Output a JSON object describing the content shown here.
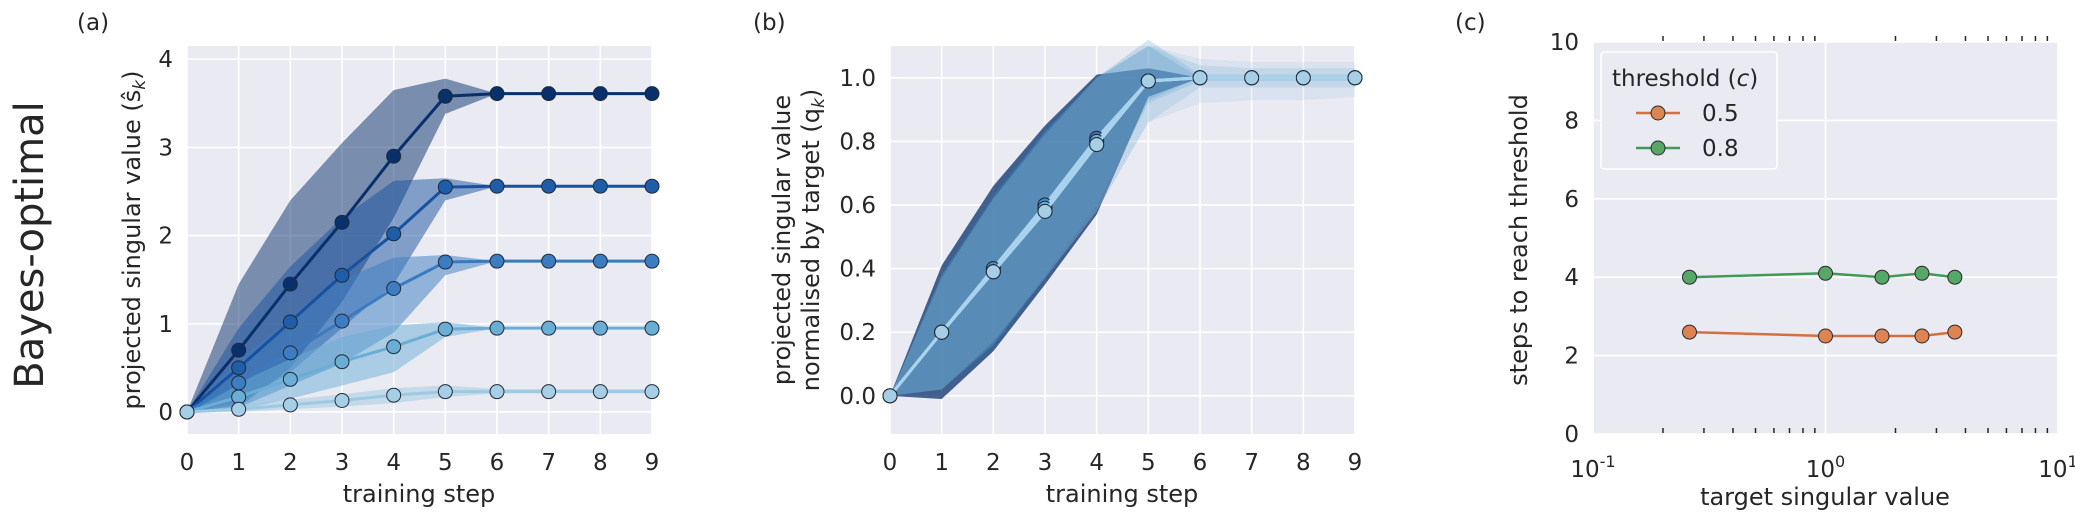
{
  "row_label": "Bayes-optimal",
  "chart_data": [
    {
      "panel": "(a)",
      "type": "line",
      "xlabel": "training step",
      "ylabel": "projected singular value (ŝ",
      "ylabel_sub": "k",
      "ylabel_end": ")",
      "xlim": [
        0,
        9
      ],
      "ylim": [
        -0.25,
        4.15
      ],
      "xticks": [
        "0",
        "1",
        "2",
        "3",
        "4",
        "5",
        "6",
        "7",
        "8",
        "9"
      ],
      "yticks": [
        "0",
        "1",
        "2",
        "3",
        "4"
      ],
      "ytick_values": [
        0,
        1,
        2,
        3,
        4
      ],
      "grid": true,
      "x": [
        0,
        1,
        2,
        3,
        4,
        5,
        6,
        7,
        8,
        9
      ],
      "series": [
        {
          "values": [
            0,
            0.7,
            1.45,
            2.15,
            2.9,
            3.58,
            3.61,
            3.61,
            3.61,
            3.61
          ],
          "lower": [
            0,
            0.05,
            0.5,
            1.25,
            2.2,
            3.38,
            3.61,
            3.61,
            3.61,
            3.61
          ],
          "upper": [
            0,
            1.45,
            2.4,
            3.05,
            3.65,
            3.78,
            3.61,
            3.61,
            3.61,
            3.61
          ],
          "color": "#08306b",
          "marker": "#08306b"
        },
        {
          "values": [
            0,
            0.5,
            1.02,
            1.55,
            2.02,
            2.55,
            2.56,
            2.56,
            2.56,
            2.56
          ],
          "lower": [
            0,
            0.1,
            0.45,
            0.95,
            1.45,
            2.4,
            2.56,
            2.56,
            2.56,
            2.56
          ],
          "upper": [
            0,
            0.95,
            1.65,
            2.2,
            2.62,
            2.65,
            2.56,
            2.56,
            2.56,
            2.56
          ],
          "color": "#1752a0",
          "marker": "#1e5ea8"
        },
        {
          "values": [
            0,
            0.33,
            0.67,
            1.03,
            1.4,
            1.7,
            1.71,
            1.71,
            1.71,
            1.71
          ],
          "lower": [
            0,
            0.05,
            0.3,
            0.55,
            0.9,
            1.55,
            1.71,
            1.71,
            1.71,
            1.71
          ],
          "upper": [
            0,
            0.6,
            1.05,
            1.5,
            1.75,
            1.78,
            1.71,
            1.71,
            1.71,
            1.71
          ],
          "color": "#3a7bbf",
          "marker": "#3b7dc0"
        },
        {
          "values": [
            0,
            0.17,
            0.37,
            0.57,
            0.74,
            0.94,
            0.95,
            0.95,
            0.95,
            0.95
          ],
          "lower": [
            0,
            0.02,
            0.15,
            0.3,
            0.45,
            0.85,
            0.95,
            0.95,
            0.95,
            0.95
          ],
          "upper": [
            0,
            0.33,
            0.6,
            0.85,
            0.98,
            1.02,
            0.95,
            0.95,
            0.95,
            0.95
          ],
          "color": "#6aaed6",
          "marker": "#6aaed6"
        },
        {
          "values": [
            0,
            0.03,
            0.08,
            0.13,
            0.19,
            0.23,
            0.23,
            0.23,
            0.23,
            0.23
          ],
          "lower": [
            0,
            0,
            0.03,
            0.06,
            0.1,
            0.17,
            0.21,
            0.21,
            0.21,
            0.21
          ],
          "upper": [
            0,
            0.07,
            0.14,
            0.2,
            0.27,
            0.3,
            0.26,
            0.26,
            0.26,
            0.26
          ],
          "color": "#9ecae1",
          "marker": "#a6cfe5"
        }
      ]
    },
    {
      "panel": "(b)",
      "type": "line",
      "xlabel": "training step",
      "ylabel": "projected singular value",
      "ylabel2": "normalised by target (q",
      "ylabel2_sub": "k",
      "ylabel2_end": ")",
      "xlim": [
        0,
        9
      ],
      "ylim": [
        -0.12,
        1.1
      ],
      "xticks": [
        "0",
        "1",
        "2",
        "3",
        "4",
        "5",
        "6",
        "7",
        "8",
        "9"
      ],
      "yticks": [
        "0.0",
        "0.2",
        "0.4",
        "0.6",
        "0.8",
        "1.0"
      ],
      "ytick_values": [
        0,
        0.2,
        0.4,
        0.6,
        0.8,
        1.0
      ],
      "grid": true,
      "x": [
        0,
        1,
        2,
        3,
        4,
        5,
        6,
        7,
        8,
        9
      ],
      "series": [
        {
          "values": [
            0,
            0.2,
            0.4,
            0.6,
            0.81,
            0.99,
            1,
            1,
            1,
            1
          ],
          "lower": [
            0,
            -0.01,
            0.14,
            0.35,
            0.57,
            0.94,
            1,
            1,
            1,
            1
          ],
          "upper": [
            0,
            0.41,
            0.66,
            0.85,
            1.01,
            1.03,
            1,
            1,
            1,
            1
          ],
          "color": "#08306b",
          "marker": "#4a6fa5"
        },
        {
          "values": [
            0,
            0.2,
            0.4,
            0.6,
            0.8,
            0.99,
            1,
            1,
            1,
            1
          ],
          "lower": [
            0,
            0.02,
            0.15,
            0.37,
            0.6,
            0.93,
            1,
            1,
            1,
            1
          ],
          "upper": [
            0,
            0.38,
            0.63,
            0.84,
            1,
            1.1,
            1,
            1,
            1,
            1
          ],
          "color": "#2171b5",
          "marker": "#4292c6"
        },
        {
          "values": [
            0,
            0.2,
            0.39,
            0.59,
            0.8,
            0.99,
            1,
            1,
            1,
            1
          ],
          "lower": [
            0,
            0.02,
            0.16,
            0.38,
            0.6,
            0.92,
            0.99,
            0.99,
            0.99,
            0.99
          ],
          "upper": [
            0,
            0.38,
            0.63,
            0.83,
            1,
            1.12,
            1.01,
            1.01,
            1.01,
            1.01
          ],
          "color": "#4292c6",
          "marker": "#6baed6"
        },
        {
          "values": [
            0,
            0.2,
            0.39,
            0.58,
            0.79,
            0.99,
            1,
            1,
            1,
            1
          ],
          "lower": [
            0,
            0.02,
            0.16,
            0.37,
            0.58,
            0.86,
            0.97,
            0.97,
            0.97,
            0.97
          ],
          "upper": [
            0,
            0.38,
            0.62,
            0.83,
            1,
            1.1,
            1.04,
            1.03,
            1.03,
            1.03
          ],
          "color": "#6baed6",
          "marker": "#9ecae1"
        },
        {
          "values": [
            0,
            0.2,
            0.39,
            0.58,
            0.79,
            0.99,
            1,
            1,
            1,
            1
          ],
          "lower": [
            0,
            0.02,
            0.17,
            0.37,
            0.58,
            0.86,
            0.92,
            0.93,
            0.93,
            0.94
          ],
          "upper": [
            0,
            0.37,
            0.62,
            0.82,
            1,
            1.1,
            1.06,
            1.05,
            1.05,
            1.05
          ],
          "color": "#9ecae1",
          "marker": "#a6cfe5"
        }
      ]
    },
    {
      "panel": "(c)",
      "type": "line",
      "xlabel": "target singular value",
      "ylabel": "steps to reach threshold",
      "xscale": "log",
      "xlim": [
        0.1,
        10
      ],
      "ylim": [
        0,
        10
      ],
      "xticks": [
        {
          "base": "10",
          "exp": "-1",
          "value": 0.1
        },
        {
          "base": "10",
          "exp": "0",
          "value": 1
        },
        {
          "base": "10",
          "exp": "1",
          "value": 10
        }
      ],
      "yticks": [
        "0",
        "2",
        "4",
        "6",
        "8",
        "10"
      ],
      "ytick_values": [
        0,
        2,
        4,
        6,
        8,
        10
      ],
      "grid": true,
      "legend": {
        "title": "threshold (",
        "title_var": "c",
        "title_end": ")",
        "position": "top-left"
      },
      "series": [
        {
          "name": "0.5",
          "color": "#dd8452",
          "line": "#d4703f",
          "x": [
            0.26,
            1.0,
            1.75,
            2.6,
            3.6
          ],
          "values": [
            2.6,
            2.5,
            2.5,
            2.5,
            2.6
          ]
        },
        {
          "name": "0.8",
          "color": "#55a868",
          "line": "#3f9a55",
          "x": [
            0.26,
            1.0,
            1.75,
            2.6,
            3.6
          ],
          "values": [
            4.0,
            4.1,
            4.0,
            4.1,
            4.0
          ]
        }
      ]
    }
  ]
}
